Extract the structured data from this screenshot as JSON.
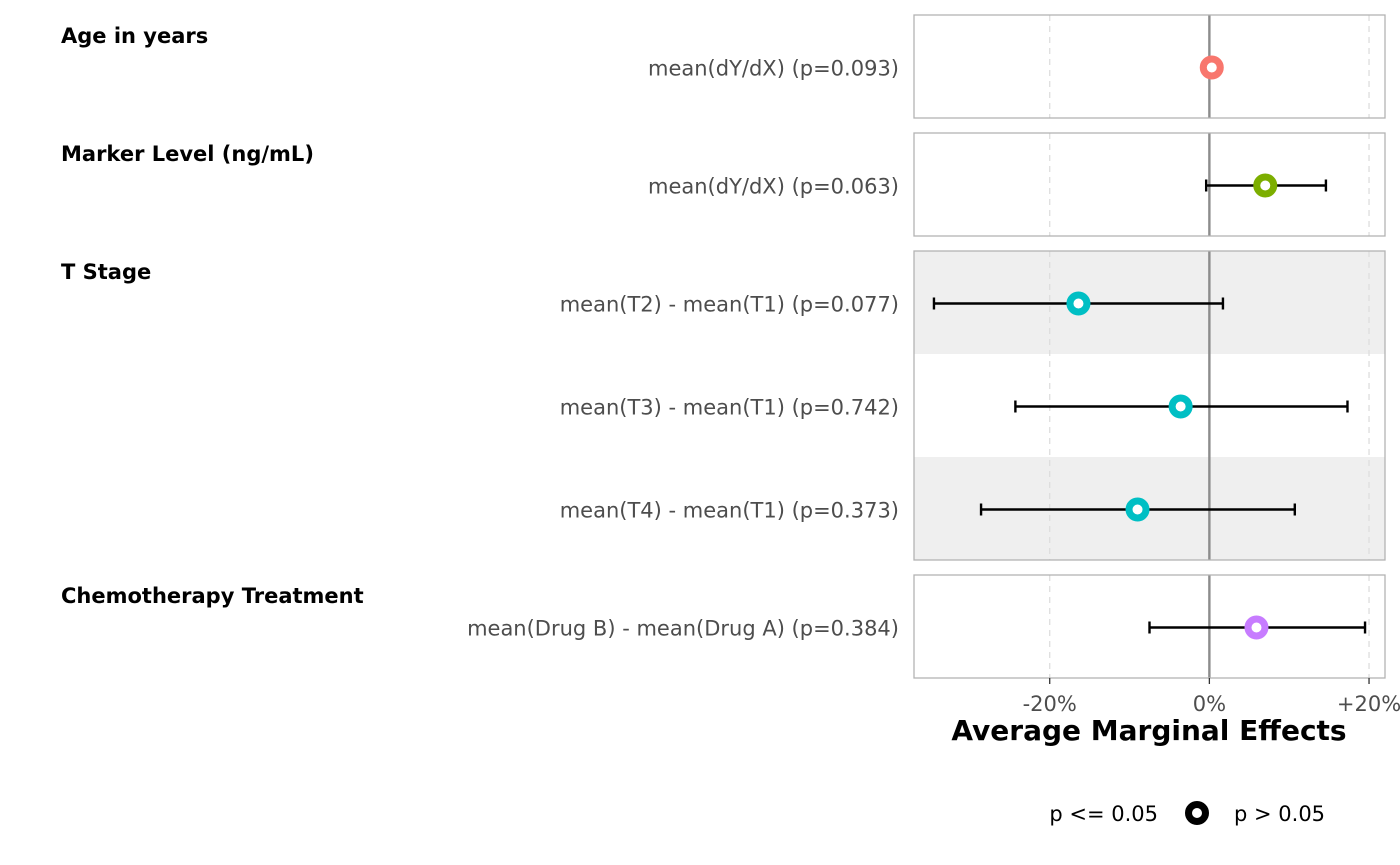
{
  "chart_data": {
    "type": "forest",
    "xlabel": "Average Marginal Effects",
    "xlim": [
      -0.37,
      0.22
    ],
    "x_ticks": [
      {
        "value": -0.2,
        "label": "-20%"
      },
      {
        "value": 0.0,
        "label": "0%"
      },
      {
        "value": 0.2,
        "label": "+20%"
      }
    ],
    "grid": true,
    "reference_line": 0,
    "groups": [
      {
        "label": "Age in years",
        "color": "#F8766D",
        "rows": [
          {
            "label": "mean(dY/dX) (p=0.093)",
            "estimate": 0.003,
            "low": 0.003,
            "high": 0.003,
            "p": 0.093
          }
        ]
      },
      {
        "label": "Marker Level (ng/mL)",
        "color": "#7CAE00",
        "rows": [
          {
            "label": "mean(dY/dX) (p=0.063)",
            "estimate": 0.07,
            "low": -0.004,
            "high": 0.146,
            "p": 0.063
          }
        ]
      },
      {
        "label": "T Stage",
        "color": "#00BFC4",
        "rows": [
          {
            "label": "mean(T2) - mean(T1) (p=0.077)",
            "estimate": -0.164,
            "low": -0.345,
            "high": 0.017,
            "p": 0.077
          },
          {
            "label": "mean(T3) - mean(T1) (p=0.742)",
            "estimate": -0.036,
            "low": -0.243,
            "high": 0.173,
            "p": 0.742
          },
          {
            "label": "mean(T4) - mean(T1) (p=0.373)",
            "estimate": -0.09,
            "low": -0.286,
            "high": 0.107,
            "p": 0.373
          }
        ]
      },
      {
        "label": "Chemotherapy Treatment",
        "color": "#C77CFF",
        "rows": [
          {
            "label": "mean(Drug B) - mean(Drug A) (p=0.384)",
            "estimate": 0.059,
            "low": -0.075,
            "high": 0.195,
            "p": 0.384
          }
        ]
      }
    ],
    "legend": {
      "position": "bottom",
      "items": [
        {
          "label": "p <= 0.05",
          "marker": "filled"
        },
        {
          "label": "p > 0.05",
          "marker": "hollow"
        }
      ]
    }
  }
}
